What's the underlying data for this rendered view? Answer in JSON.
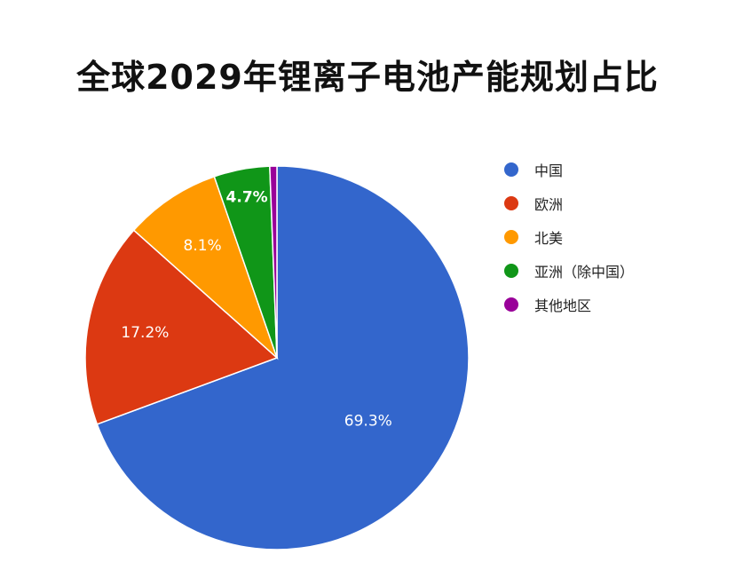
{
  "chart_data": {
    "type": "pie",
    "title": "全球2029年锂离子电池产能规划占比",
    "categories": [
      "中国",
      "欧洲",
      "北美",
      "亚洲（除中国）",
      "其他地区"
    ],
    "values": [
      69.3,
      17.2,
      8.1,
      4.7,
      0.6
    ],
    "labels": [
      "69.3%",
      "17.2%",
      "8.1%",
      "4.7%",
      ""
    ],
    "colors": [
      "#3366CC",
      "#DC3912",
      "#FF9900",
      "#109618",
      "#990099"
    ],
    "legend_position": "right",
    "start": "top",
    "direction": "clockwise"
  }
}
